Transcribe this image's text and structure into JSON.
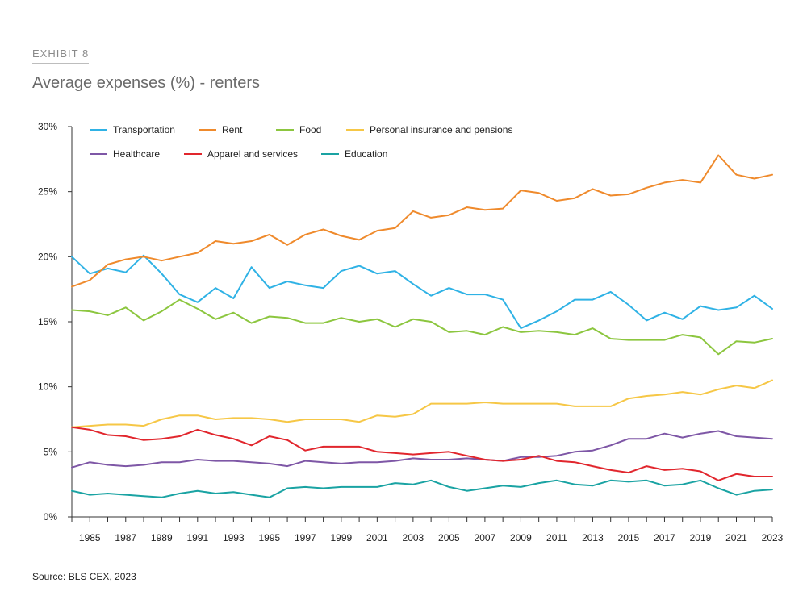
{
  "exhibit_label": "EXHIBIT 8",
  "source": "Source: BLS CEX, 2023",
  "chart_data": {
    "type": "line",
    "title": "Average expenses (%) - renters",
    "xlabel": "",
    "ylabel": "",
    "ylim": [
      0,
      30
    ],
    "xlim": [
      1984,
      2023
    ],
    "yticks": [
      "0%",
      "5%",
      "10%",
      "15%",
      "20%",
      "25%",
      "30%"
    ],
    "xticks": [
      "1985",
      "1987",
      "1989",
      "1991",
      "1993",
      "1995",
      "1997",
      "1999",
      "2001",
      "2003",
      "2005",
      "2007",
      "2009",
      "2011",
      "2013",
      "2015",
      "2017",
      "2019",
      "2021",
      "2023"
    ],
    "legend_position": "top-left",
    "x": [
      1984,
      1985,
      1986,
      1987,
      1988,
      1989,
      1990,
      1991,
      1992,
      1993,
      1994,
      1995,
      1996,
      1997,
      1998,
      1999,
      2000,
      2001,
      2002,
      2003,
      2004,
      2005,
      2006,
      2007,
      2008,
      2009,
      2010,
      2011,
      2012,
      2013,
      2014,
      2015,
      2016,
      2017,
      2018,
      2019,
      2020,
      2021,
      2022,
      2023
    ],
    "series": [
      {
        "name": "Transportation",
        "color": "#2fb2e5",
        "values": [
          20.0,
          18.7,
          19.1,
          18.8,
          20.1,
          18.7,
          17.1,
          16.5,
          17.6,
          16.8,
          19.2,
          17.6,
          18.1,
          17.8,
          17.6,
          18.9,
          19.3,
          18.7,
          18.9,
          17.9,
          17.0,
          17.6,
          17.1,
          17.1,
          16.7,
          14.5,
          15.1,
          15.8,
          16.7,
          16.7,
          17.3,
          16.3,
          15.1,
          15.7,
          15.2,
          16.2,
          15.9,
          16.1,
          17.0,
          16.0
        ]
      },
      {
        "name": "Rent",
        "color": "#ef8a2c",
        "values": [
          17.7,
          18.2,
          19.4,
          19.8,
          20.0,
          19.7,
          20.0,
          20.3,
          21.2,
          21.0,
          21.2,
          21.7,
          20.9,
          21.7,
          22.1,
          21.6,
          21.3,
          22.0,
          22.2,
          23.5,
          23.0,
          23.2,
          23.8,
          23.6,
          23.7,
          25.1,
          24.9,
          24.3,
          24.5,
          25.2,
          24.7,
          24.8,
          25.3,
          25.7,
          25.9,
          25.7,
          27.8,
          26.3,
          26.0,
          26.3
        ]
      },
      {
        "name": "Food",
        "color": "#8cc63f",
        "values": [
          15.9,
          15.8,
          15.5,
          16.1,
          15.1,
          15.8,
          16.7,
          16.0,
          15.2,
          15.7,
          14.9,
          15.4,
          15.3,
          14.9,
          14.9,
          15.3,
          15.0,
          15.2,
          14.6,
          15.2,
          15.0,
          14.2,
          14.3,
          14.0,
          14.6,
          14.2,
          14.3,
          14.2,
          14.0,
          14.5,
          13.7,
          13.6,
          13.6,
          13.6,
          14.0,
          13.8,
          12.5,
          13.5,
          13.4,
          13.7
        ]
      },
      {
        "name": "Personal insurance and pensions",
        "color": "#f6c746",
        "values": [
          6.9,
          7.0,
          7.1,
          7.1,
          7.0,
          7.5,
          7.8,
          7.8,
          7.5,
          7.6,
          7.6,
          7.5,
          7.3,
          7.5,
          7.5,
          7.5,
          7.3,
          7.8,
          7.7,
          7.9,
          8.7,
          8.7,
          8.7,
          8.8,
          8.7,
          8.7,
          8.7,
          8.7,
          8.5,
          8.5,
          8.5,
          9.1,
          9.3,
          9.4,
          9.6,
          9.4,
          9.8,
          10.1,
          9.9,
          10.5
        ]
      },
      {
        "name": "Healthcare",
        "color": "#7e57a6",
        "values": [
          3.8,
          4.2,
          4.0,
          3.9,
          4.0,
          4.2,
          4.2,
          4.4,
          4.3,
          4.3,
          4.2,
          4.1,
          3.9,
          4.3,
          4.2,
          4.1,
          4.2,
          4.2,
          4.3,
          4.5,
          4.4,
          4.4,
          4.5,
          4.4,
          4.3,
          4.6,
          4.6,
          4.7,
          5.0,
          5.1,
          5.5,
          6.0,
          6.0,
          6.4,
          6.1,
          6.4,
          6.6,
          6.2,
          6.1,
          6.0
        ]
      },
      {
        "name": "Apparel and services",
        "color": "#e1262d",
        "values": [
          6.9,
          6.7,
          6.3,
          6.2,
          5.9,
          6.0,
          6.2,
          6.7,
          6.3,
          6.0,
          5.5,
          6.2,
          5.9,
          5.1,
          5.4,
          5.4,
          5.4,
          5.0,
          4.9,
          4.8,
          4.9,
          5.0,
          4.7,
          4.4,
          4.3,
          4.4,
          4.7,
          4.3,
          4.2,
          3.9,
          3.6,
          3.4,
          3.9,
          3.6,
          3.7,
          3.5,
          2.8,
          3.3,
          3.1,
          3.1
        ]
      },
      {
        "name": "Education",
        "color": "#1aa3a3",
        "values": [
          2.0,
          1.7,
          1.8,
          1.7,
          1.6,
          1.5,
          1.8,
          2.0,
          1.8,
          1.9,
          1.7,
          1.5,
          2.2,
          2.3,
          2.2,
          2.3,
          2.3,
          2.3,
          2.6,
          2.5,
          2.8,
          2.3,
          2.0,
          2.2,
          2.4,
          2.3,
          2.6,
          2.8,
          2.5,
          2.4,
          2.8,
          2.7,
          2.8,
          2.4,
          2.5,
          2.8,
          2.2,
          1.7,
          2.0,
          2.1
        ]
      }
    ]
  }
}
